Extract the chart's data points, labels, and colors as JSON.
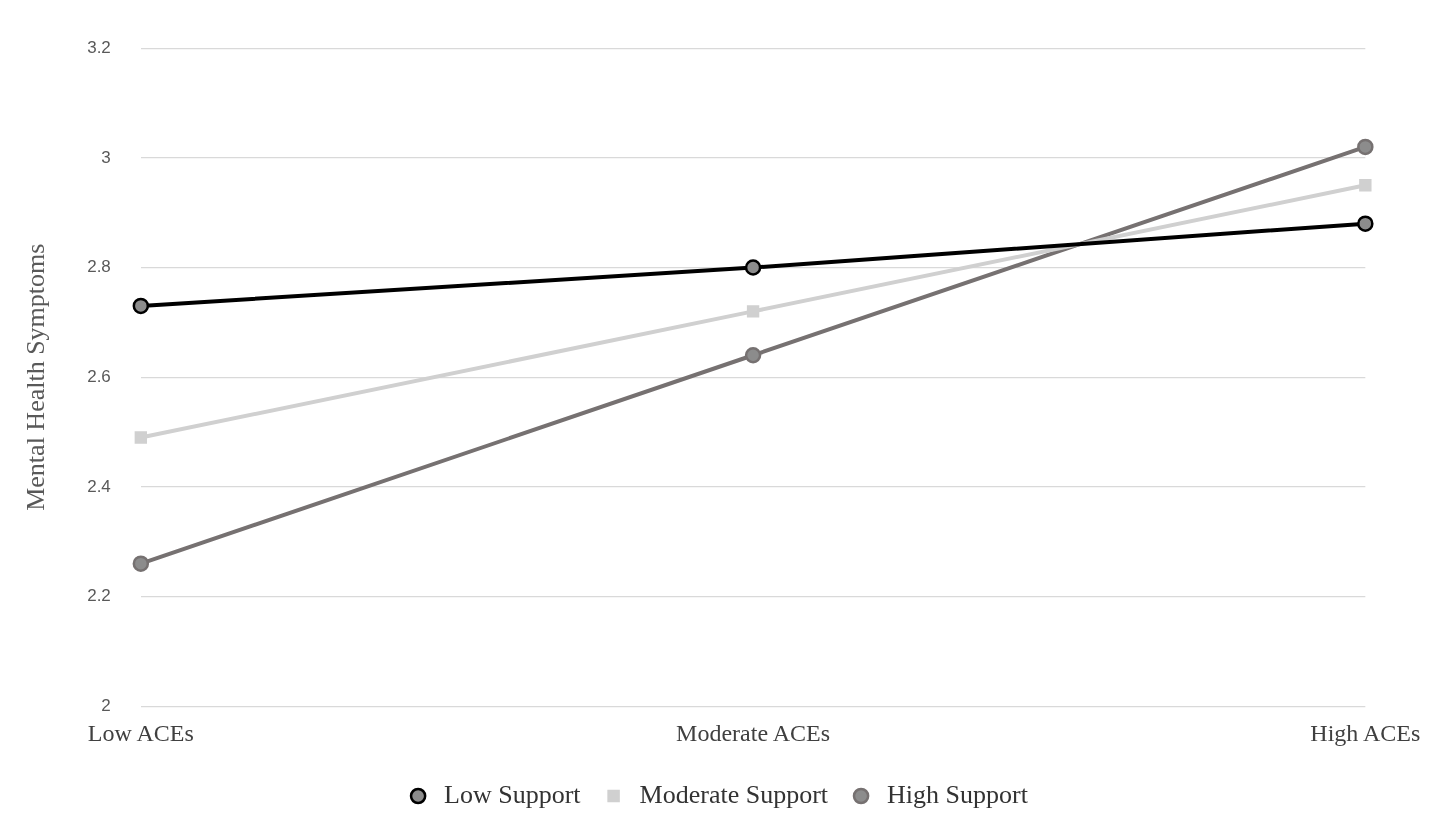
{
  "chart_data": {
    "type": "line",
    "ylabel": "Mental Health Symptoms",
    "categories": [
      "Low ACEs",
      "Moderate ACEs",
      "High ACEs"
    ],
    "series": [
      {
        "name": "Low Support",
        "color": "#000000",
        "marker": "circle",
        "values": [
          2.73,
          2.8,
          2.88
        ]
      },
      {
        "name": "Moderate Support",
        "color": "#d0d0d0",
        "marker": "square",
        "values": [
          2.49,
          2.72,
          2.95
        ]
      },
      {
        "name": "High Support",
        "color": "#767171",
        "marker": "circle",
        "values": [
          2.26,
          2.64,
          3.02
        ]
      }
    ],
    "ylim": [
      2,
      3.2
    ],
    "yticks": [
      2,
      2.2,
      2.4,
      2.6,
      2.8,
      3,
      3.2
    ],
    "grid": "y",
    "legend": "bottom"
  }
}
